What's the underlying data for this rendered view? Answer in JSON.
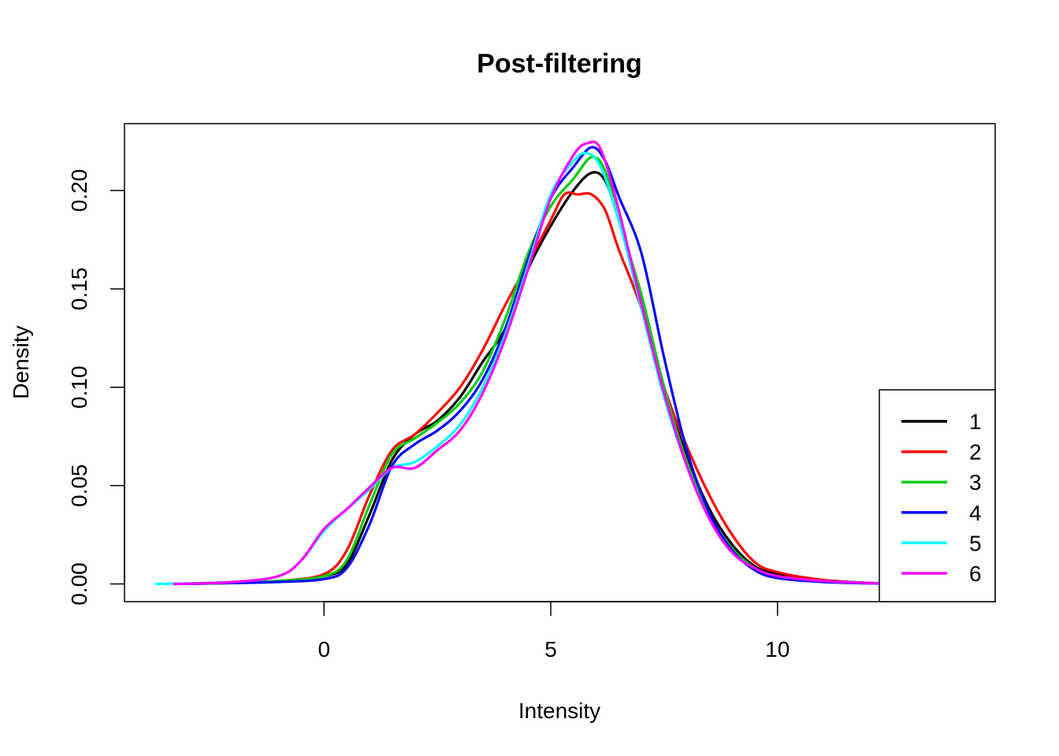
{
  "chart_data": {
    "type": "line",
    "title": "Post-filtering",
    "xlabel": "Intensity",
    "ylabel": "Density",
    "xlim": [
      -4.4,
      14.8
    ],
    "ylim": [
      -0.009,
      0.234
    ],
    "x_ticks": [
      {
        "value": 0,
        "label": "0"
      },
      {
        "value": 5,
        "label": "5"
      },
      {
        "value": 10,
        "label": "10"
      }
    ],
    "y_ticks": [
      {
        "value": 0.0,
        "label": "0.00"
      },
      {
        "value": 0.05,
        "label": "0.05"
      },
      {
        "value": 0.1,
        "label": "0.10"
      },
      {
        "value": 0.15,
        "label": "0.15"
      },
      {
        "value": 0.2,
        "label": "0.20"
      }
    ],
    "grid": false,
    "legend_position": "bottom-right",
    "series": [
      {
        "name": "1",
        "color": "#000000",
        "points": [
          [
            -3.3,
            0
          ],
          [
            -2,
            0.0005
          ],
          [
            -1,
            0.0015
          ],
          [
            0,
            0.004
          ],
          [
            0.5,
            0.01
          ],
          [
            1,
            0.035
          ],
          [
            1.5,
            0.063
          ],
          [
            2,
            0.076
          ],
          [
            2.5,
            0.083
          ],
          [
            3,
            0.095
          ],
          [
            3.5,
            0.113
          ],
          [
            4,
            0.13
          ],
          [
            4.5,
            0.16
          ],
          [
            5,
            0.182
          ],
          [
            5.5,
            0.2
          ],
          [
            5.9,
            0.209
          ],
          [
            6.2,
            0.205
          ],
          [
            6.5,
            0.185
          ],
          [
            7,
            0.146
          ],
          [
            7.5,
            0.1
          ],
          [
            8,
            0.065
          ],
          [
            8.5,
            0.038
          ],
          [
            9,
            0.02
          ],
          [
            9.5,
            0.009
          ],
          [
            10,
            0.005
          ],
          [
            11,
            0.002
          ],
          [
            12,
            0.0005
          ],
          [
            12.8,
            0
          ]
        ]
      },
      {
        "name": "2",
        "color": "#FF0000",
        "points": [
          [
            -3.3,
            0
          ],
          [
            -2,
            0.0005
          ],
          [
            -1,
            0.0015
          ],
          [
            0,
            0.005
          ],
          [
            0.5,
            0.017
          ],
          [
            1,
            0.045
          ],
          [
            1.5,
            0.068
          ],
          [
            2,
            0.076
          ],
          [
            2.5,
            0.087
          ],
          [
            3,
            0.1
          ],
          [
            3.5,
            0.119
          ],
          [
            4,
            0.142
          ],
          [
            4.5,
            0.163
          ],
          [
            5,
            0.185
          ],
          [
            5.3,
            0.198
          ],
          [
            5.6,
            0.198
          ],
          [
            5.9,
            0.198
          ],
          [
            6.2,
            0.19
          ],
          [
            6.5,
            0.17
          ],
          [
            7,
            0.14
          ],
          [
            7.5,
            0.1
          ],
          [
            8,
            0.07
          ],
          [
            8.5,
            0.045
          ],
          [
            9,
            0.025
          ],
          [
            9.5,
            0.011
          ],
          [
            10,
            0.006
          ],
          [
            11,
            0.002
          ],
          [
            12,
            0.0005
          ],
          [
            12.8,
            0
          ]
        ]
      },
      {
        "name": "3",
        "color": "#00CD00",
        "points": [
          [
            -3.3,
            0
          ],
          [
            -2,
            0.0005
          ],
          [
            -1,
            0.0015
          ],
          [
            0,
            0.004
          ],
          [
            0.5,
            0.012
          ],
          [
            1,
            0.04
          ],
          [
            1.5,
            0.066
          ],
          [
            2,
            0.074
          ],
          [
            2.5,
            0.082
          ],
          [
            3,
            0.092
          ],
          [
            3.5,
            0.108
          ],
          [
            4,
            0.135
          ],
          [
            4.5,
            0.168
          ],
          [
            5,
            0.192
          ],
          [
            5.5,
            0.206
          ],
          [
            5.9,
            0.217
          ],
          [
            6.2,
            0.21
          ],
          [
            6.5,
            0.185
          ],
          [
            7,
            0.147
          ],
          [
            7.5,
            0.1
          ],
          [
            8,
            0.062
          ],
          [
            8.5,
            0.035
          ],
          [
            9,
            0.018
          ],
          [
            9.5,
            0.008
          ],
          [
            10,
            0.004
          ],
          [
            11,
            0.0015
          ],
          [
            12,
            0.0005
          ],
          [
            12.8,
            0
          ]
        ]
      },
      {
        "name": "4",
        "color": "#0000FF",
        "points": [
          [
            -3.3,
            0
          ],
          [
            -2,
            0.0005
          ],
          [
            -1,
            0.001
          ],
          [
            0,
            0.0025
          ],
          [
            0.5,
            0.008
          ],
          [
            1,
            0.03
          ],
          [
            1.5,
            0.06
          ],
          [
            2,
            0.071
          ],
          [
            2.5,
            0.078
          ],
          [
            3,
            0.088
          ],
          [
            3.5,
            0.104
          ],
          [
            4,
            0.13
          ],
          [
            4.5,
            0.165
          ],
          [
            5,
            0.196
          ],
          [
            5.5,
            0.212
          ],
          [
            5.9,
            0.222
          ],
          [
            6.2,
            0.215
          ],
          [
            6.5,
            0.197
          ],
          [
            7,
            0.168
          ],
          [
            7.5,
            0.115
          ],
          [
            8,
            0.068
          ],
          [
            8.5,
            0.036
          ],
          [
            9,
            0.017
          ],
          [
            9.5,
            0.007
          ],
          [
            10,
            0.003
          ],
          [
            11,
            0.001
          ],
          [
            12,
            0.0003
          ],
          [
            12.8,
            0
          ]
        ]
      },
      {
        "name": "5",
        "color": "#00FFFF",
        "points": [
          [
            -3.7,
            0
          ],
          [
            -2,
            0.001
          ],
          [
            -1,
            0.004
          ],
          [
            -0.5,
            0.012
          ],
          [
            0,
            0.027
          ],
          [
            0.5,
            0.038
          ],
          [
            1,
            0.048
          ],
          [
            1.5,
            0.059
          ],
          [
            2,
            0.062
          ],
          [
            2.5,
            0.07
          ],
          [
            3,
            0.081
          ],
          [
            3.5,
            0.1
          ],
          [
            4,
            0.127
          ],
          [
            4.5,
            0.162
          ],
          [
            5,
            0.198
          ],
          [
            5.5,
            0.215
          ],
          [
            5.8,
            0.219
          ],
          [
            6.1,
            0.212
          ],
          [
            6.5,
            0.185
          ],
          [
            7,
            0.14
          ],
          [
            7.5,
            0.095
          ],
          [
            8,
            0.06
          ],
          [
            8.5,
            0.033
          ],
          [
            9,
            0.016
          ],
          [
            9.5,
            0.008
          ],
          [
            10,
            0.004
          ],
          [
            11,
            0.0015
          ],
          [
            12,
            0.0005
          ],
          [
            12.8,
            0
          ]
        ]
      },
      {
        "name": "6",
        "color": "#FF00FF",
        "points": [
          [
            -3.3,
            0
          ],
          [
            -2,
            0.001
          ],
          [
            -1,
            0.004
          ],
          [
            -0.5,
            0.012
          ],
          [
            0,
            0.028
          ],
          [
            0.5,
            0.038
          ],
          [
            1,
            0.049
          ],
          [
            1.5,
            0.059
          ],
          [
            2,
            0.059
          ],
          [
            2.5,
            0.068
          ],
          [
            3,
            0.078
          ],
          [
            3.5,
            0.097
          ],
          [
            4,
            0.125
          ],
          [
            4.5,
            0.16
          ],
          [
            5,
            0.196
          ],
          [
            5.5,
            0.218
          ],
          [
            5.8,
            0.224
          ],
          [
            6.1,
            0.221
          ],
          [
            6.5,
            0.19
          ],
          [
            7,
            0.142
          ],
          [
            7.5,
            0.097
          ],
          [
            8,
            0.06
          ],
          [
            8.5,
            0.033
          ],
          [
            9,
            0.016
          ],
          [
            9.5,
            0.008
          ],
          [
            10,
            0.004
          ],
          [
            11,
            0.0015
          ],
          [
            12,
            0.0005
          ],
          [
            12.8,
            0
          ]
        ]
      }
    ]
  }
}
